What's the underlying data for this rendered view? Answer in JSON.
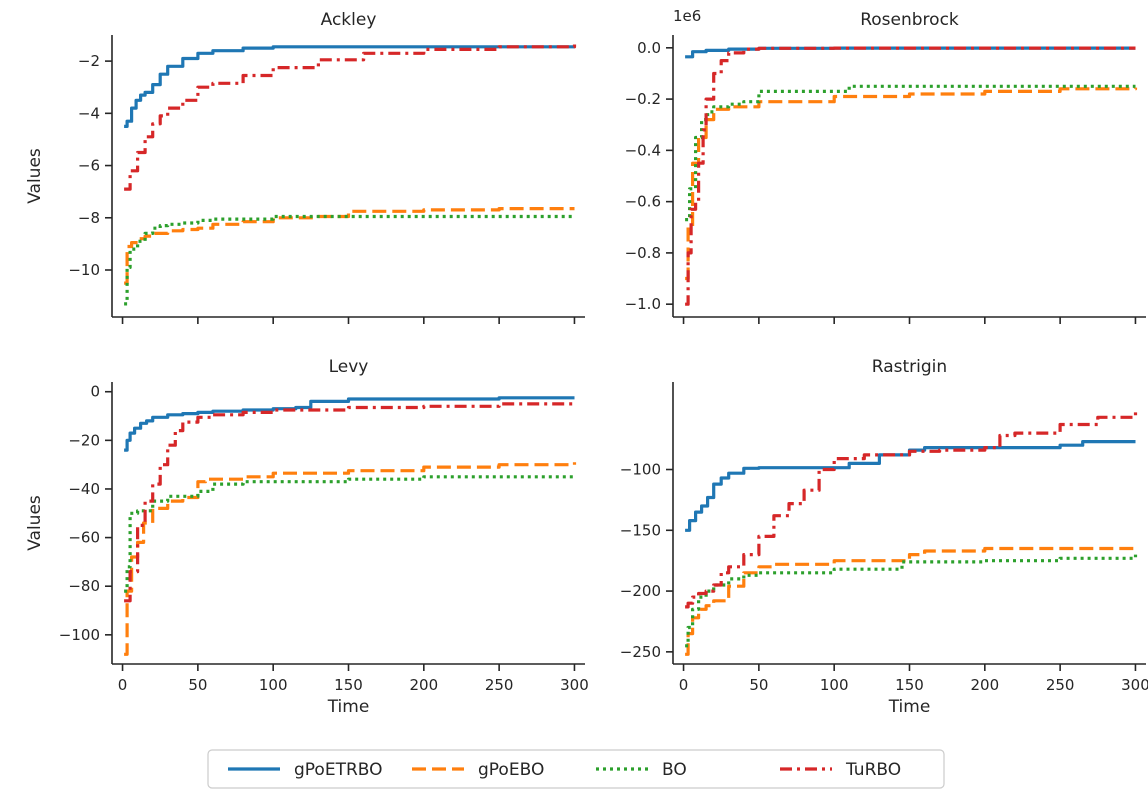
{
  "legend": [
    {
      "name": "gPoETRBO",
      "color": "#1f77b4",
      "dash": "solid"
    },
    {
      "name": "gPoEBO",
      "color": "#ff7f0e",
      "dash": "dashed"
    },
    {
      "name": "BO",
      "color": "#2ca02c",
      "dash": "dotted"
    },
    {
      "name": "TuRBO",
      "color": "#d62728",
      "dash": "dashdot"
    }
  ],
  "chart_data": [
    {
      "type": "line",
      "title": "Ackley",
      "xlabel": "",
      "ylabel": "Values",
      "xlim": [
        -7,
        307
      ],
      "ylim": [
        -11.8,
        -1.0
      ],
      "xticks": [
        0,
        50,
        100,
        150,
        200,
        250,
        300
      ],
      "show_xtick_labels": false,
      "yticks": [
        -10,
        -8,
        -6,
        -4,
        -2
      ],
      "ytick_labels": [
        "−10",
        "−8",
        "−6",
        "−4",
        "−2"
      ],
      "offset_text": "",
      "series": [
        {
          "name": "gPoETRBO",
          "x": [
            1,
            3,
            6,
            9,
            12,
            15,
            20,
            25,
            30,
            40,
            50,
            60,
            80,
            100,
            150,
            200,
            250,
            300
          ],
          "y": [
            -4.5,
            -4.3,
            -3.8,
            -3.5,
            -3.3,
            -3.2,
            -2.9,
            -2.5,
            -2.2,
            -1.9,
            -1.7,
            -1.6,
            -1.5,
            -1.45,
            -1.45,
            -1.45,
            -1.45,
            -1.45
          ]
        },
        {
          "name": "gPoEBO",
          "x": [
            1,
            3,
            6,
            10,
            15,
            20,
            30,
            40,
            50,
            60,
            80,
            100,
            130,
            150,
            200,
            250,
            300
          ],
          "y": [
            -10.5,
            -9.1,
            -8.95,
            -8.8,
            -8.7,
            -8.6,
            -8.5,
            -8.45,
            -8.4,
            -8.25,
            -8.15,
            -8.0,
            -7.95,
            -7.75,
            -7.7,
            -7.65,
            -7.65
          ]
        },
        {
          "name": "BO",
          "x": [
            1,
            3,
            5,
            10,
            15,
            20,
            25,
            30,
            40,
            50,
            60,
            100,
            130,
            150,
            200,
            250,
            300
          ],
          "y": [
            -11.3,
            -9.9,
            -9.2,
            -8.9,
            -8.6,
            -8.4,
            -8.3,
            -8.25,
            -8.2,
            -8.1,
            -8.05,
            -7.95,
            -7.95,
            -7.95,
            -7.95,
            -7.95,
            -7.95
          ]
        },
        {
          "name": "TuRBO",
          "x": [
            1,
            5,
            10,
            15,
            20,
            25,
            30,
            40,
            50,
            60,
            80,
            100,
            130,
            160,
            200,
            250,
            300
          ],
          "y": [
            -6.9,
            -6.2,
            -5.5,
            -4.9,
            -4.4,
            -4.1,
            -3.8,
            -3.5,
            -3.0,
            -2.85,
            -2.55,
            -2.25,
            -1.95,
            -1.7,
            -1.55,
            -1.45,
            -1.3
          ]
        }
      ]
    },
    {
      "type": "line",
      "title": "Rosenbrock",
      "xlabel": "",
      "ylabel": "",
      "xlim": [
        -7,
        307
      ],
      "ylim": [
        -1.05,
        0.05
      ],
      "xticks": [
        0,
        50,
        100,
        150,
        200,
        250,
        300
      ],
      "show_xtick_labels": false,
      "yticks": [
        -1.0,
        -0.8,
        -0.6,
        -0.4,
        -0.2,
        0.0
      ],
      "ytick_labels": [
        "−1.0",
        "−0.8",
        "−0.6",
        "−0.4",
        "−0.2",
        "0.0"
      ],
      "offset_text": "1e6",
      "series": [
        {
          "name": "gPoETRBO",
          "x": [
            1,
            5,
            6,
            15,
            30,
            50,
            100,
            300
          ],
          "y": [
            -0.035,
            -0.035,
            -0.015,
            -0.01,
            -0.005,
            -0.002,
            -0.001,
            -0.001
          ]
        },
        {
          "name": "gPoEBO",
          "x": [
            1,
            3,
            6,
            10,
            15,
            20,
            30,
            50,
            100,
            150,
            200,
            250,
            300
          ],
          "y": [
            -0.9,
            -0.7,
            -0.45,
            -0.35,
            -0.28,
            -0.24,
            -0.23,
            -0.21,
            -0.19,
            -0.18,
            -0.17,
            -0.16,
            -0.155
          ]
        },
        {
          "name": "BO",
          "x": [
            1,
            4,
            8,
            12,
            16,
            20,
            30,
            40,
            50,
            100,
            110,
            150,
            200,
            250,
            300
          ],
          "y": [
            -0.67,
            -0.55,
            -0.35,
            -0.28,
            -0.25,
            -0.23,
            -0.22,
            -0.21,
            -0.17,
            -0.17,
            -0.15,
            -0.15,
            -0.15,
            -0.15,
            -0.15
          ]
        },
        {
          "name": "TuRBO",
          "x": [
            1,
            3,
            5,
            8,
            10,
            13,
            15,
            20,
            25,
            30,
            40,
            50,
            100,
            200,
            300
          ],
          "y": [
            -1.0,
            -0.8,
            -0.63,
            -0.6,
            -0.45,
            -0.32,
            -0.2,
            -0.1,
            -0.05,
            -0.02,
            -0.005,
            -0.002,
            -0.001,
            -0.001,
            -0.001
          ]
        }
      ]
    },
    {
      "type": "line",
      "title": "Levy",
      "xlabel": "Time",
      "ylabel": "Values",
      "xlim": [
        -7,
        307
      ],
      "ylim": [
        -112,
        4
      ],
      "xticks": [
        0,
        50,
        100,
        150,
        200,
        250,
        300
      ],
      "show_xtick_labels": true,
      "xtick_labels": [
        "0",
        "50",
        "100",
        "150",
        "200",
        "250",
        "300"
      ],
      "yticks": [
        -100,
        -80,
        -60,
        -40,
        -20,
        0
      ],
      "ytick_labels": [
        "−100",
        "−80",
        "−60",
        "−40",
        "−20",
        "0"
      ],
      "offset_text": "",
      "series": [
        {
          "name": "gPoETRBO",
          "x": [
            1,
            3,
            5,
            8,
            12,
            16,
            20,
            30,
            40,
            50,
            60,
            80,
            100,
            115,
            125,
            150,
            200,
            250,
            300
          ],
          "y": [
            -24,
            -20,
            -17,
            -15,
            -13,
            -12,
            -10.5,
            -9.5,
            -9,
            -8.5,
            -8,
            -7.5,
            -7,
            -6.5,
            -4,
            -3,
            -3,
            -2.5,
            -2.5
          ]
        },
        {
          "name": "gPoEBO",
          "x": [
            1,
            3,
            6,
            10,
            14,
            20,
            30,
            40,
            50,
            55,
            80,
            100,
            150,
            200,
            250,
            300
          ],
          "y": [
            -108,
            -82,
            -68,
            -62,
            -54,
            -48,
            -45,
            -43.5,
            -37,
            -36,
            -35,
            -33.5,
            -32.5,
            -31,
            -30,
            -29
          ]
        },
        {
          "name": "BO",
          "x": [
            1,
            3,
            5,
            10,
            20,
            30,
            50,
            60,
            80,
            100,
            150,
            200,
            250,
            300
          ],
          "y": [
            -82,
            -72,
            -50,
            -49,
            -45,
            -43,
            -41,
            -38,
            -37,
            -37,
            -36,
            -35,
            -35,
            -35
          ]
        },
        {
          "name": "TuRBO",
          "x": [
            1,
            5,
            10,
            15,
            20,
            25,
            30,
            35,
            40,
            50,
            60,
            80,
            100,
            150,
            200,
            250,
            300
          ],
          "y": [
            -86,
            -74,
            -55,
            -45,
            -38,
            -30,
            -22,
            -16,
            -12.5,
            -10.5,
            -9.5,
            -8.5,
            -7.5,
            -6.5,
            -6,
            -5,
            -4
          ]
        }
      ]
    },
    {
      "type": "line",
      "title": "Rastrigin",
      "xlabel": "Time",
      "ylabel": "",
      "xlim": [
        -7,
        307
      ],
      "ylim": [
        -260,
        -28
      ],
      "xticks": [
        0,
        50,
        100,
        150,
        200,
        250,
        300
      ],
      "show_xtick_labels": true,
      "xtick_labels": [
        "0",
        "50",
        "100",
        "150",
        "200",
        "250",
        "300"
      ],
      "yticks": [
        -250,
        -200,
        -150,
        -100
      ],
      "ytick_labels": [
        "−250",
        "−200",
        "−150",
        "−100"
      ],
      "offset_text": "",
      "series": [
        {
          "name": "gPoETRBO",
          "x": [
            1,
            4,
            8,
            12,
            16,
            20,
            25,
            30,
            40,
            50,
            100,
            110,
            130,
            150,
            160,
            200,
            250,
            265,
            300
          ],
          "y": [
            -150,
            -142,
            -135,
            -130,
            -123,
            -112,
            -107,
            -103,
            -99,
            -98.5,
            -98.5,
            -95,
            -88,
            -84,
            -82,
            -82,
            -80,
            -77,
            -77
          ]
        },
        {
          "name": "gPoEBO",
          "x": [
            1,
            3,
            6,
            10,
            15,
            20,
            30,
            40,
            50,
            60,
            100,
            150,
            160,
            200,
            250,
            300
          ],
          "y": [
            -252,
            -235,
            -222,
            -215,
            -212,
            -208,
            -196,
            -185,
            -180,
            -178,
            -175,
            -170,
            -167,
            -165,
            -165,
            -165
          ]
        },
        {
          "name": "BO",
          "x": [
            1,
            3,
            6,
            10,
            15,
            20,
            30,
            40,
            50,
            100,
            140,
            145,
            200,
            250,
            300
          ],
          "y": [
            -245,
            -230,
            -215,
            -205,
            -200,
            -195,
            -190,
            -187,
            -185,
            -182,
            -182,
            -176,
            -175,
            -173,
            -170
          ]
        },
        {
          "name": "TuRBO",
          "x": [
            1,
            3,
            6,
            10,
            15,
            20,
            25,
            30,
            40,
            50,
            60,
            70,
            80,
            90,
            100,
            120,
            150,
            170,
            190,
            200,
            210,
            220,
            250,
            275,
            300
          ],
          "y": [
            -213,
            -210,
            -205,
            -202,
            -200,
            -195,
            -185,
            -180,
            -170,
            -155,
            -138,
            -128,
            -117,
            -100,
            -91,
            -88,
            -85,
            -84,
            -84,
            -82,
            -72,
            -70,
            -63,
            -57,
            -53
          ]
        }
      ]
    }
  ]
}
